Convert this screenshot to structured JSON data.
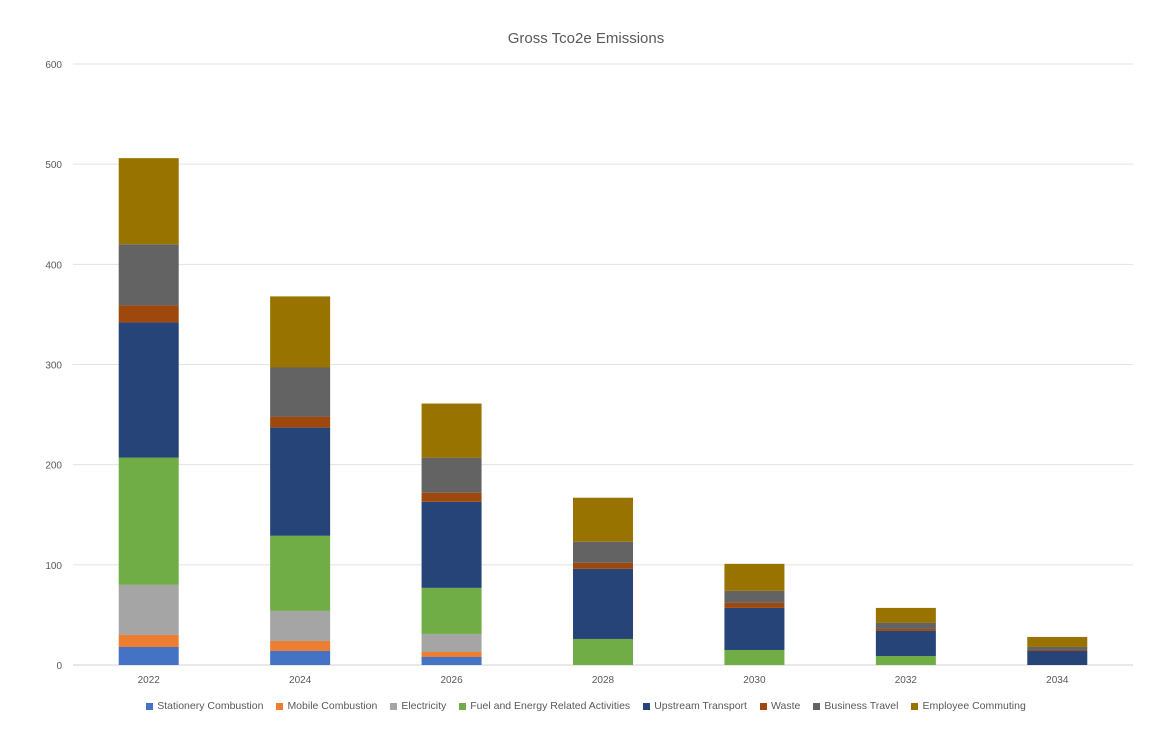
{
  "chart_data": {
    "type": "bar",
    "stacked": true,
    "title": "Gross Tco2e Emissions",
    "xlabel": "",
    "ylabel": "",
    "ylim": [
      0,
      600
    ],
    "yticks": [
      "0",
      "100",
      "200",
      "300",
      "400",
      "500",
      "600"
    ],
    "grid": true,
    "legend_position": "bottom",
    "categories": [
      "2022",
      "2024",
      "2026",
      "2028",
      "2030",
      "2032",
      "2034"
    ],
    "series": [
      {
        "name": "Stationery Combustion",
        "color": "#4472C4",
        "values": [
          18,
          14,
          8,
          0,
          0,
          0,
          0
        ]
      },
      {
        "name": "Mobile Combustion",
        "color": "#ED7D31",
        "values": [
          12,
          10,
          5,
          0,
          0,
          0,
          0
        ]
      },
      {
        "name": "Electricity",
        "color": "#A5A5A5",
        "values": [
          50,
          30,
          18,
          0,
          0,
          0,
          0
        ]
      },
      {
        "name": "Fuel and Energy Related Activities",
        "color": "#70AD47",
        "values": [
          127,
          75,
          46,
          26,
          15,
          9,
          0
        ]
      },
      {
        "name": "Upstream Transport",
        "color": "#264478",
        "values": [
          135,
          108,
          86,
          70,
          42,
          25,
          14
        ]
      },
      {
        "name": "Waste",
        "color": "#9E480E",
        "values": [
          17,
          11,
          9,
          6,
          5,
          2,
          1
        ]
      },
      {
        "name": "Business Travel",
        "color": "#636363",
        "values": [
          61,
          49,
          35,
          21,
          12,
          6,
          3
        ]
      },
      {
        "name": "Employee Commuting",
        "color": "#997300",
        "values": [
          86,
          71,
          54,
          44,
          27,
          15,
          10
        ]
      }
    ]
  }
}
